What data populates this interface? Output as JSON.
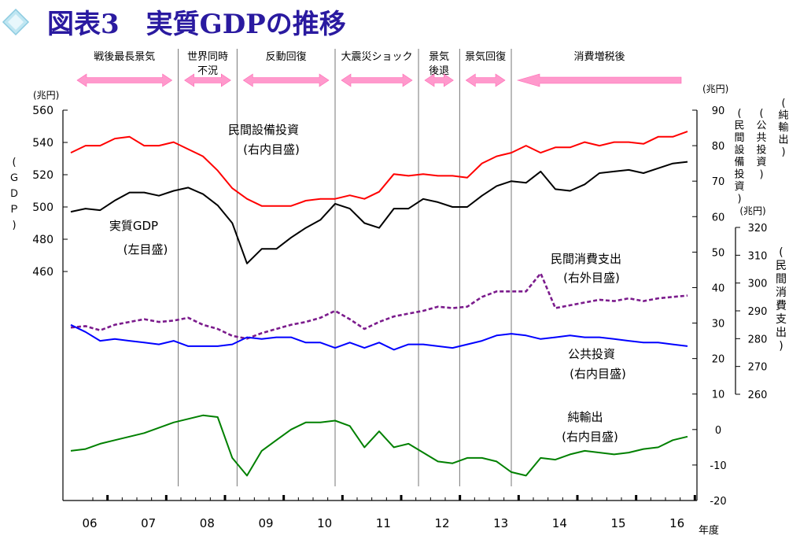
{
  "header": {
    "title": "図表3　実質GDPの推移"
  },
  "colors": {
    "gdp": "#000000",
    "capex": "#ff0000",
    "consumption": "#7b1b8c",
    "public_investment": "#0000ff",
    "net_exports": "#008000",
    "phase_arrow": "#ff99cc",
    "title": "#2a1aa0"
  },
  "chart_data": {
    "type": "line",
    "x_unit_label": "年度",
    "years": [
      "06",
      "07",
      "08",
      "09",
      "10",
      "11",
      "12",
      "13",
      "14",
      "15",
      "16"
    ],
    "phases": [
      {
        "label": "戦後最長景気",
        "start_year": 2006.0,
        "end_year": 2007.83,
        "direction": "both"
      },
      {
        "label": "世界同時不況",
        "start_year": 2007.83,
        "end_year": 2008.83,
        "direction": "both"
      },
      {
        "label": "反動回復",
        "start_year": 2008.83,
        "end_year": 2010.5,
        "direction": "both"
      },
      {
        "label": "大震災ショック",
        "start_year": 2010.5,
        "end_year": 2011.92,
        "direction": "both"
      },
      {
        "label": "景気後退",
        "start_year": 2011.92,
        "end_year": 2012.62,
        "direction": "both"
      },
      {
        "label": "景気回復",
        "start_year": 2012.62,
        "end_year": 2013.5,
        "direction": "both"
      },
      {
        "label": "消費増税後",
        "start_year": 2013.5,
        "end_year": 2016.5,
        "direction": "left"
      }
    ],
    "axes": {
      "left": {
        "unit": "(兆円)",
        "title": "(ＧＤＰ)",
        "ticks": [
          460,
          480,
          500,
          520,
          540,
          560
        ],
        "range": [
          460,
          560
        ]
      },
      "right_inner": {
        "unit": "(兆円)",
        "ticks": [
          -20,
          -10,
          0,
          10,
          20,
          30,
          40,
          50,
          60,
          70,
          80,
          90
        ],
        "range": [
          -20,
          90
        ],
        "titles": [
          "(民間設備投資)",
          "(公共投資)",
          "(純輸出)"
        ]
      },
      "right_outer": {
        "unit": "(兆円)",
        "ticks": [
          260,
          270,
          280,
          290,
          300,
          310,
          320
        ],
        "range": [
          260,
          320
        ],
        "title": "(民間消費支出)"
      }
    },
    "series": [
      {
        "name": "実質GDP",
        "axis_note": "(左目盛)",
        "axis": "left",
        "color": "#000000",
        "dashed": false,
        "x": [
          2006.0,
          2006.25,
          2006.5,
          2006.75,
          2007.0,
          2007.25,
          2007.5,
          2007.75,
          2008.0,
          2008.25,
          2008.5,
          2008.75,
          2009.0,
          2009.25,
          2009.5,
          2009.75,
          2010.0,
          2010.25,
          2010.5,
          2010.75,
          2011.0,
          2011.25,
          2011.5,
          2011.75,
          2012.0,
          2012.25,
          2012.5,
          2012.75,
          2013.0,
          2013.25,
          2013.5,
          2013.75,
          2014.0,
          2014.25,
          2014.5,
          2014.75,
          2015.0,
          2015.25,
          2015.5,
          2015.75,
          2016.0,
          2016.25,
          2016.5
        ],
        "y": [
          497,
          499,
          498,
          504,
          509,
          509,
          507,
          510,
          512,
          508,
          501,
          490,
          465,
          474,
          474,
          481,
          487,
          492,
          502,
          499,
          490,
          487,
          499,
          499,
          505,
          503,
          500,
          500,
          507,
          513,
          516,
          515,
          522,
          511,
          510,
          514,
          521,
          522,
          523,
          521,
          524,
          527,
          528
        ]
      },
      {
        "name": "民間設備投資",
        "axis_note": "(右内目盛)",
        "axis": "right_inner",
        "color": "#ff0000",
        "dashed": false,
        "x": [
          2006.0,
          2006.25,
          2006.5,
          2006.75,
          2007.0,
          2007.25,
          2007.5,
          2007.75,
          2008.0,
          2008.25,
          2008.5,
          2008.75,
          2009.0,
          2009.25,
          2009.5,
          2009.75,
          2010.0,
          2010.25,
          2010.5,
          2010.75,
          2011.0,
          2011.25,
          2011.5,
          2011.75,
          2012.0,
          2012.25,
          2012.5,
          2012.75,
          2013.0,
          2013.25,
          2013.5,
          2013.75,
          2014.0,
          2014.25,
          2014.5,
          2014.75,
          2015.0,
          2015.25,
          2015.5,
          2015.75,
          2016.0,
          2016.25,
          2016.5
        ],
        "y": [
          78,
          80,
          80,
          82,
          82.5,
          80,
          80,
          81,
          79,
          77,
          73,
          68,
          65,
          63,
          63,
          63,
          64.5,
          65,
          65,
          66,
          65,
          67,
          72,
          71.5,
          72,
          71.5,
          71.5,
          71,
          75,
          77,
          78,
          80,
          78,
          79.5,
          79.5,
          81,
          80,
          81,
          81,
          80.5,
          82.5,
          82.5,
          84
        ]
      },
      {
        "name": "民間消費支出",
        "axis_note": "(右外目盛)",
        "axis": "right_outer",
        "color": "#7b1b8c",
        "dashed": true,
        "x": [
          2006.0,
          2006.25,
          2006.5,
          2006.75,
          2007.0,
          2007.25,
          2007.5,
          2007.75,
          2008.0,
          2008.25,
          2008.5,
          2008.75,
          2009.0,
          2009.25,
          2009.5,
          2009.75,
          2010.0,
          2010.25,
          2010.5,
          2010.75,
          2011.0,
          2011.25,
          2011.5,
          2011.75,
          2012.0,
          2012.25,
          2012.5,
          2012.75,
          2013.0,
          2013.25,
          2013.5,
          2013.75,
          2014.0,
          2014.25,
          2014.5,
          2014.75,
          2015.0,
          2015.25,
          2015.5,
          2015.75,
          2016.0,
          2016.25,
          2016.5
        ],
        "y": [
          284,
          284.5,
          283,
          285,
          286,
          287,
          286,
          286.5,
          287.5,
          285,
          283.5,
          281,
          280,
          282,
          283.5,
          285,
          286,
          287.5,
          290,
          287,
          283.5,
          286,
          288,
          289,
          290,
          291.5,
          291,
          291.5,
          295,
          297,
          297,
          297,
          303.5,
          291,
          292,
          293,
          294,
          293.5,
          294.5,
          293.5,
          294.5,
          295,
          295.5
        ]
      },
      {
        "name": "公共投資",
        "axis_note": "(右内目盛)",
        "axis": "right_inner",
        "color": "#0000ff",
        "dashed": false,
        "x": [
          2006.0,
          2006.25,
          2006.5,
          2006.75,
          2007.0,
          2007.25,
          2007.5,
          2007.75,
          2008.0,
          2008.25,
          2008.5,
          2008.75,
          2009.0,
          2009.25,
          2009.5,
          2009.75,
          2010.0,
          2010.25,
          2010.5,
          2010.75,
          2011.0,
          2011.25,
          2011.5,
          2011.75,
          2012.0,
          2012.25,
          2012.5,
          2012.75,
          2013.0,
          2013.25,
          2013.5,
          2013.75,
          2014.0,
          2014.25,
          2014.5,
          2014.75,
          2015.0,
          2015.25,
          2015.5,
          2015.75,
          2016.0,
          2016.25,
          2016.5
        ],
        "y": [
          29.5,
          27.5,
          25,
          25.5,
          25,
          24.5,
          24,
          25,
          23.5,
          23.5,
          23.5,
          24,
          26,
          25.5,
          26,
          26,
          24.5,
          24.5,
          23,
          24.5,
          23,
          24.5,
          22.5,
          24,
          24,
          23.5,
          23,
          24,
          25,
          26.5,
          27,
          26.5,
          25.5,
          26,
          26.5,
          26,
          26,
          25.5,
          25,
          24.5,
          24.5,
          24,
          23.5
        ]
      },
      {
        "name": "純輸出",
        "axis_note": "(右内目盛)",
        "axis": "right_inner",
        "color": "#008000",
        "dashed": false,
        "x": [
          2006.0,
          2006.25,
          2006.5,
          2006.75,
          2007.0,
          2007.25,
          2007.5,
          2007.75,
          2008.0,
          2008.25,
          2008.5,
          2008.75,
          2009.0,
          2009.25,
          2009.5,
          2009.75,
          2010.0,
          2010.25,
          2010.5,
          2010.75,
          2011.0,
          2011.25,
          2011.5,
          2011.75,
          2012.0,
          2012.25,
          2012.5,
          2012.75,
          2013.0,
          2013.25,
          2013.5,
          2013.75,
          2014.0,
          2014.25,
          2014.5,
          2014.75,
          2015.0,
          2015.25,
          2015.5,
          2015.75,
          2016.0,
          2016.25,
          2016.5
        ],
        "y": [
          -6,
          -5.5,
          -4,
          -3,
          -2,
          -1,
          0.5,
          2,
          3,
          4,
          3.5,
          -8,
          -13,
          -6,
          -3,
          0,
          2,
          2,
          2.5,
          1,
          -5,
          -0.5,
          -5,
          -4,
          -6.5,
          -9,
          -9.5,
          -8,
          -8,
          -9,
          -12,
          -13,
          -8,
          -8.5,
          -7,
          -6,
          -6.5,
          -7,
          -6.5,
          -5.5,
          -5,
          -3,
          -2
        ]
      }
    ],
    "grid": false
  }
}
